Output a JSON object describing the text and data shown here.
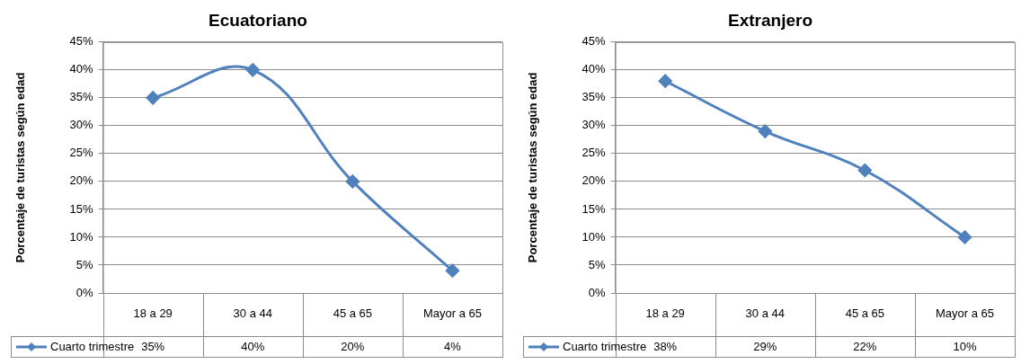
{
  "chart_data": [
    {
      "type": "line",
      "title": "Ecuatoriano",
      "ylabel": "Porcentaje de turistas según edad",
      "categories": [
        "18 a 29",
        "30 a 44",
        "45 a 65",
        "Mayor a 65"
      ],
      "series": [
        {
          "name": "Cuarto trimestre",
          "color": "#4f81bd",
          "values": [
            35,
            40,
            20,
            4
          ],
          "value_labels": [
            "35%",
            "40%",
            "20%",
            "4%"
          ]
        }
      ],
      "ylim": [
        0,
        45
      ],
      "yticks": [
        {
          "value": 0,
          "label": "0%"
        },
        {
          "value": 5,
          "label": "5%"
        },
        {
          "value": 10,
          "label": "10%"
        },
        {
          "value": 15,
          "label": "15%"
        },
        {
          "value": 20,
          "label": "20%"
        },
        {
          "value": 25,
          "label": "25%"
        },
        {
          "value": 30,
          "label": "30%"
        },
        {
          "value": 35,
          "label": "35%"
        },
        {
          "value": 40,
          "label": "40%"
        },
        {
          "value": 45,
          "label": "45%"
        }
      ],
      "grid": "y",
      "marker": "diamond"
    },
    {
      "type": "line",
      "title": "Extranjero",
      "ylabel": "Porcentaje de turistas según edad",
      "categories": [
        "18 a 29",
        "30 a 44",
        "45 a 65",
        "Mayor a 65"
      ],
      "series": [
        {
          "name": "Cuarto trimestre",
          "color": "#4f81bd",
          "values": [
            38,
            29,
            22,
            10
          ],
          "value_labels": [
            "38%",
            "29%",
            "22%",
            "10%"
          ]
        }
      ],
      "ylim": [
        0,
        45
      ],
      "yticks": [
        {
          "value": 0,
          "label": "0%"
        },
        {
          "value": 5,
          "label": "5%"
        },
        {
          "value": 10,
          "label": "10%"
        },
        {
          "value": 15,
          "label": "15%"
        },
        {
          "value": 20,
          "label": "20%"
        },
        {
          "value": 25,
          "label": "25%"
        },
        {
          "value": 30,
          "label": "30%"
        },
        {
          "value": 35,
          "label": "35%"
        },
        {
          "value": 40,
          "label": "40%"
        },
        {
          "value": 45,
          "label": "45%"
        }
      ],
      "grid": "y",
      "marker": "diamond"
    }
  ]
}
